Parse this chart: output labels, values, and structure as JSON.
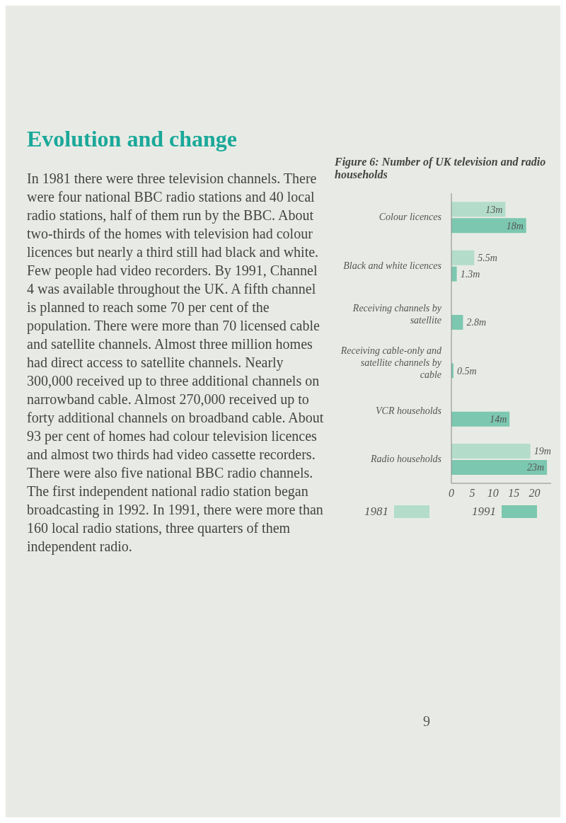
{
  "chart_data": {
    "type": "bar",
    "orientation": "horizontal",
    "title": "Figure 6: Number of UK television and radio households",
    "annotations": [
      "Evolution and change",
      "In 1981 there were three television channels. There were four national BBC radio stations and 40 local radio stations, half of them run by the BBC. About two-thirds of the homes with television had colour licences but nearly a third still had black and white. Few people had video recorders. By 1991, Channel 4 was available throughout the UK. A fifth channel is planned to reach some 70 per cent of the population. There were more than 70 licensed cable and satellite channels. Almost three million homes had direct access to satellite channels. Nearly 300,000 received up to three additional channels on narrowband cable. Almost 270,000 received up to forty additional channels on broadband cable. About 93 per cent of homes had colour television licences and almost two thirds had video cassette recorders. There were also five national BBC radio channels. The first independent national radio station began broadcasting in 1992. In 1991, there were more than 160 local radio stations, three quarters of them independent radio.",
      "9"
    ],
    "categories": [
      "Colour licences",
      "Black and white licences",
      "Receiving channels by satellite",
      "Receiving cable-only and satellite channels by cable",
      "VCR households",
      "Radio households"
    ],
    "series": [
      {
        "name": "1981",
        "color": "#b3dccb",
        "values": [
          13,
          5.5,
          null,
          null,
          null,
          19
        ],
        "value_labels": [
          "13m",
          "5.5m",
          null,
          null,
          null,
          "19m"
        ]
      },
      {
        "name": "1991",
        "color": "#7cc7b0",
        "values": [
          18,
          1.3,
          2.8,
          0.5,
          14,
          23
        ],
        "value_labels": [
          "18m",
          "1.3m",
          "2.8m",
          "0.5m",
          "14m",
          "23m"
        ]
      }
    ],
    "xlim": [
      0,
      24
    ],
    "xticks": [
      0,
      5,
      10,
      15,
      20
    ],
    "legend": "bottom"
  }
}
